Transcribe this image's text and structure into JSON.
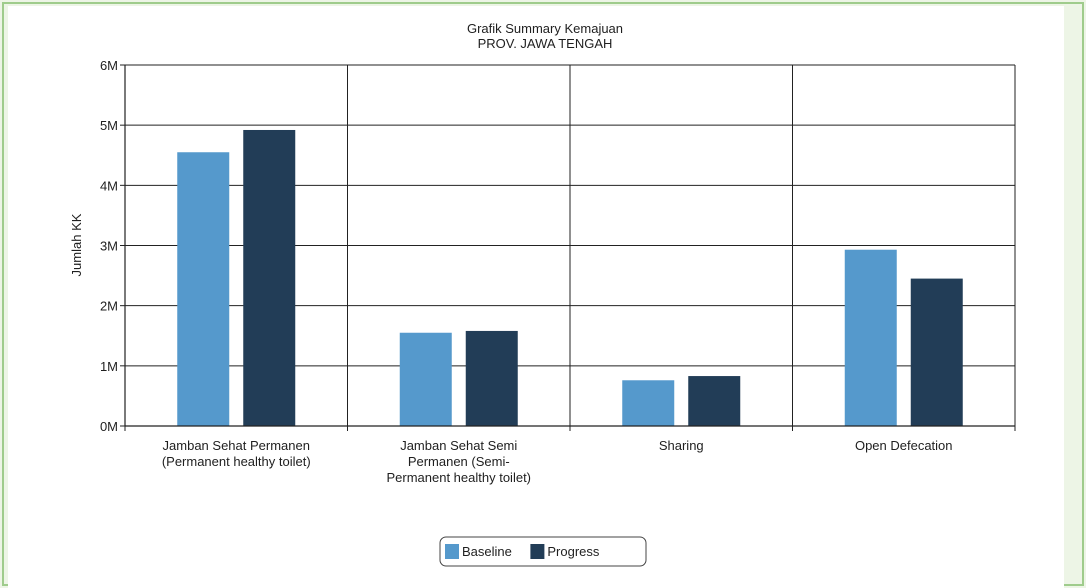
{
  "chart_data": {
    "type": "bar",
    "title": "Grafik Summary Kemajuan",
    "subtitle": "PROV. JAWA TENGAH",
    "xlabel": "",
    "ylabel": "Jumlah KK",
    "ylim": [
      0,
      6000000
    ],
    "yticks": [
      {
        "value": 0,
        "label": "0M"
      },
      {
        "value": 1000000,
        "label": "1M"
      },
      {
        "value": 2000000,
        "label": "2M"
      },
      {
        "value": 3000000,
        "label": "3M"
      },
      {
        "value": 4000000,
        "label": "4M"
      },
      {
        "value": 5000000,
        "label": "5M"
      },
      {
        "value": 6000000,
        "label": "6M"
      }
    ],
    "categories": [
      [
        "Jamban Sehat Permanen",
        "(Permanent healthy toilet)"
      ],
      [
        "Jamban Sehat Semi",
        "Permanen (Semi-",
        "Permanent healthy toilet)"
      ],
      [
        "Sharing"
      ],
      [
        "Open Defecation"
      ]
    ],
    "series": [
      {
        "name": "Baseline",
        "color": "#5599cc",
        "values": [
          4550000,
          1550000,
          760000,
          2930000
        ]
      },
      {
        "name": "Progress",
        "color": "#223d57",
        "values": [
          4920000,
          1580000,
          830000,
          2450000
        ]
      }
    ],
    "grid": true,
    "legend_position": "bottom-center"
  }
}
